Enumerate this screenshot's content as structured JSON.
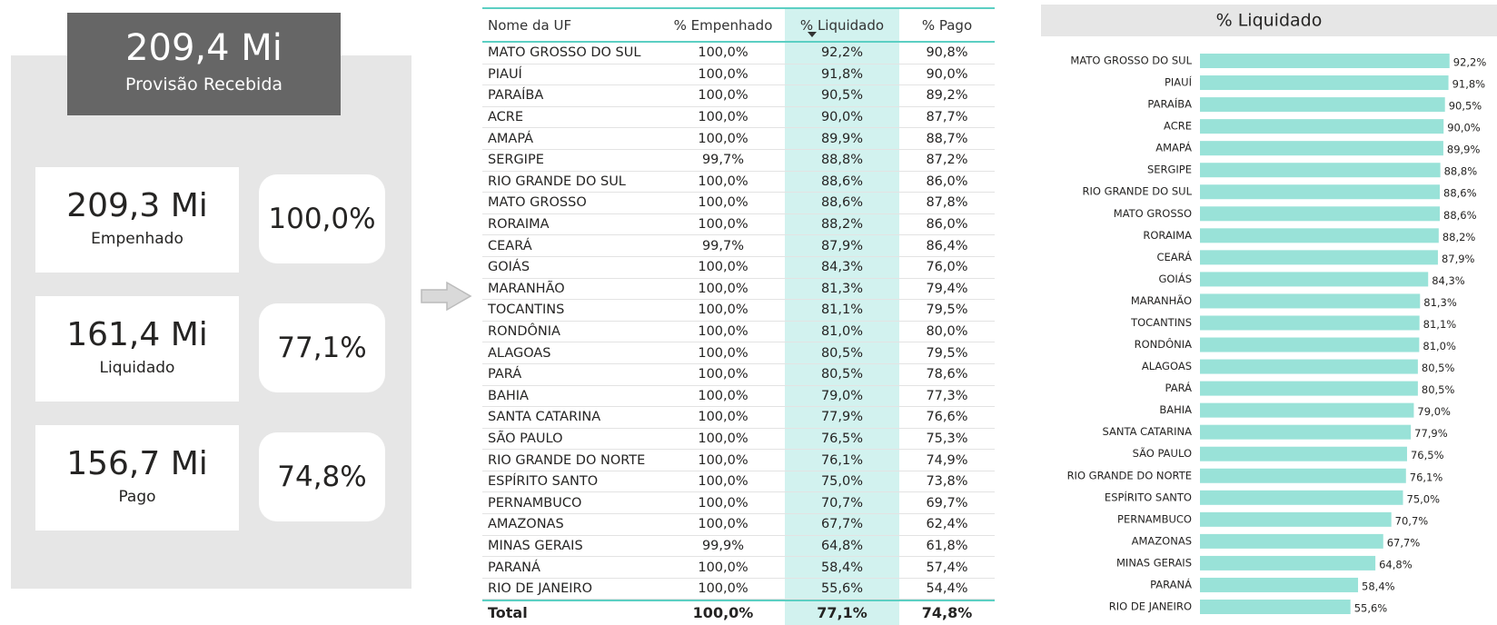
{
  "kpis": {
    "main": {
      "value": "209,4 Mi",
      "label": "Provisão Recebida"
    },
    "cards": [
      {
        "value": "209,3 Mi",
        "label": "Empenhado",
        "percent": "100,0%"
      },
      {
        "value": "161,4 Mi",
        "label": "Liquidado",
        "percent": "77,1%"
      },
      {
        "value": "156,7 Mi",
        "label": "Pago",
        "percent": "74,8%"
      }
    ]
  },
  "table": {
    "columns": [
      "Nome da UF",
      "% Empenhado",
      "% Liquidado",
      "% Pago"
    ],
    "rows": [
      [
        "MATO GROSSO DO SUL",
        "100,0%",
        "92,2%",
        "90,8%"
      ],
      [
        "PIAUÍ",
        "100,0%",
        "91,8%",
        "90,0%"
      ],
      [
        "PARAÍBA",
        "100,0%",
        "90,5%",
        "89,2%"
      ],
      [
        "ACRE",
        "100,0%",
        "90,0%",
        "87,7%"
      ],
      [
        "AMAPÁ",
        "100,0%",
        "89,9%",
        "88,7%"
      ],
      [
        "SERGIPE",
        "99,7%",
        "88,8%",
        "87,2%"
      ],
      [
        "RIO GRANDE DO SUL",
        "100,0%",
        "88,6%",
        "86,0%"
      ],
      [
        "MATO GROSSO",
        "100,0%",
        "88,6%",
        "87,8%"
      ],
      [
        "RORAIMA",
        "100,0%",
        "88,2%",
        "86,0%"
      ],
      [
        "CEARÁ",
        "99,7%",
        "87,9%",
        "86,4%"
      ],
      [
        "GOIÁS",
        "100,0%",
        "84,3%",
        "76,0%"
      ],
      [
        "MARANHÃO",
        "100,0%",
        "81,3%",
        "79,4%"
      ],
      [
        "TOCANTINS",
        "100,0%",
        "81,1%",
        "79,5%"
      ],
      [
        "RONDÔNIA",
        "100,0%",
        "81,0%",
        "80,0%"
      ],
      [
        "ALAGOAS",
        "100,0%",
        "80,5%",
        "79,5%"
      ],
      [
        "PARÁ",
        "100,0%",
        "80,5%",
        "78,6%"
      ],
      [
        "BAHIA",
        "100,0%",
        "79,0%",
        "77,3%"
      ],
      [
        "SANTA CATARINA",
        "100,0%",
        "77,9%",
        "76,6%"
      ],
      [
        "SÃO PAULO",
        "100,0%",
        "76,5%",
        "75,3%"
      ],
      [
        "RIO GRANDE DO NORTE",
        "100,0%",
        "76,1%",
        "74,9%"
      ],
      [
        "ESPÍRITO SANTO",
        "100,0%",
        "75,0%",
        "73,8%"
      ],
      [
        "PERNAMBUCO",
        "100,0%",
        "70,7%",
        "69,7%"
      ],
      [
        "AMAZONAS",
        "100,0%",
        "67,7%",
        "62,4%"
      ],
      [
        "MINAS GERAIS",
        "99,9%",
        "64,8%",
        "61,8%"
      ],
      [
        "PARANÁ",
        "100,0%",
        "58,4%",
        "57,4%"
      ],
      [
        "RIO DE JANEIRO",
        "100,0%",
        "55,6%",
        "54,4%"
      ]
    ],
    "total": [
      "Total",
      "100,0%",
      "77,1%",
      "74,8%"
    ]
  },
  "chart_data": {
    "type": "hbar",
    "title": "% Liquidado",
    "color": "#99e2d8",
    "xlim": [
      0,
      100
    ],
    "categories": [
      "MATO GROSSO DO SUL",
      "PIAUÍ",
      "PARAÍBA",
      "ACRE",
      "AMAPÁ",
      "SERGIPE",
      "RIO GRANDE DO SUL",
      "MATO GROSSO",
      "RORAIMA",
      "CEARÁ",
      "GOIÁS",
      "MARANHÃO",
      "TOCANTINS",
      "RONDÔNIA",
      "ALAGOAS",
      "PARÁ",
      "BAHIA",
      "SANTA CATARINA",
      "SÃO PAULO",
      "RIO GRANDE DO NORTE",
      "ESPÍRITO SANTO",
      "PERNAMBUCO",
      "AMAZONAS",
      "MINAS GERAIS",
      "PARANÁ",
      "RIO DE JANEIRO"
    ],
    "values": [
      92.2,
      91.8,
      90.5,
      90.0,
      89.9,
      88.8,
      88.6,
      88.6,
      88.2,
      87.9,
      84.3,
      81.3,
      81.1,
      81.0,
      80.5,
      80.5,
      79.0,
      77.9,
      76.5,
      76.1,
      75.0,
      70.7,
      67.7,
      64.8,
      58.4,
      55.6
    ],
    "value_labels": [
      "92,2%",
      "91,8%",
      "90,5%",
      "90,0%",
      "89,9%",
      "88,8%",
      "88,6%",
      "88,6%",
      "88,2%",
      "87,9%",
      "84,3%",
      "81,3%",
      "81,1%",
      "81,0%",
      "80,5%",
      "80,5%",
      "79,0%",
      "77,9%",
      "76,5%",
      "76,1%",
      "75,0%",
      "70,7%",
      "67,7%",
      "64,8%",
      "58,4%",
      "55,6%"
    ]
  }
}
